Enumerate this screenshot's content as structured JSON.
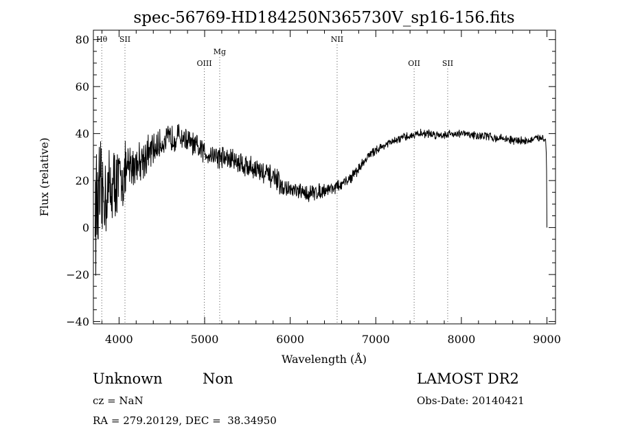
{
  "chart_data": {
    "type": "line",
    "title": "spec-56769-HD184250N365730V_sp16-156.fits",
    "xlabel": "Wavelength (Å)",
    "ylabel": "Flux (relative)",
    "xlim": [
      3700,
      9100
    ],
    "ylim": [
      -41,
      84
    ],
    "x_ticks": [
      4000,
      5000,
      6000,
      7000,
      8000,
      9000
    ],
    "y_ticks": [
      -40,
      -20,
      0,
      20,
      40,
      60,
      80
    ],
    "x_tick_labels": [
      "4000",
      "5000",
      "6000",
      "7000",
      "8000",
      "9000"
    ],
    "y_tick_labels": [
      "−40",
      "−20",
      "0",
      "20",
      "40",
      "60",
      "80"
    ],
    "grid": false,
    "spectral_lines": [
      {
        "label": "Hθ",
        "x": 3798,
        "tier": "top"
      },
      {
        "label": "SII",
        "x": 4069,
        "tier": "top"
      },
      {
        "label": "OIII",
        "x": 4996,
        "tier": "low"
      },
      {
        "label": "Mg",
        "x": 5176,
        "tier": "mid"
      },
      {
        "label": "NII",
        "x": 6548,
        "tier": "top"
      },
      {
        "label": "OII",
        "x": 7448,
        "tier": "low"
      },
      {
        "label": "SII",
        "x": 7840,
        "tier": "low"
      }
    ],
    "series": [
      {
        "x": [
          3720,
          3760,
          3800,
          3850,
          3900,
          3950,
          4000,
          4100,
          4200,
          4300,
          4400,
          4500,
          4600,
          4700,
          4800,
          4900,
          5000,
          5100,
          5200,
          5300,
          5400,
          5500,
          5600,
          5700,
          5800,
          5850,
          5900,
          6000,
          6100,
          6200,
          6300,
          6400,
          6500,
          6600,
          6700,
          6800,
          6900,
          7000,
          7100,
          7200,
          7300,
          7400,
          7500,
          7600,
          7700,
          7800,
          7900,
          8000,
          8100,
          8200,
          8300,
          8400,
          8500,
          8600,
          8700,
          8800,
          8900,
          8950,
          8985,
          8995,
          9000
        ],
        "y": [
          8,
          10,
          13,
          15,
          17,
          19,
          20,
          24,
          28,
          30,
          33,
          36,
          38,
          39,
          37,
          34,
          32,
          31,
          30,
          29,
          28,
          26,
          25,
          23,
          21,
          20,
          17,
          16,
          15,
          14.5,
          15,
          16,
          17,
          18,
          21,
          25,
          30,
          33,
          35,
          36.5,
          38,
          39,
          40,
          40,
          39.5,
          39.5,
          40,
          40,
          39.5,
          39,
          39,
          38,
          38,
          37,
          37,
          37,
          38,
          38.5,
          37,
          30,
          0
        ],
        "noise": [
          22,
          20,
          18,
          15,
          14,
          13,
          12,
          10,
          8,
          7,
          6,
          5,
          5,
          4.5,
          4.5,
          4.5,
          4.5,
          4.5,
          4.5,
          4.5,
          4.5,
          4.5,
          4.5,
          4,
          4,
          4,
          3,
          3,
          3,
          3,
          3,
          2.5,
          2.5,
          2,
          2,
          2,
          1.5,
          1.5,
          1.5,
          1.5,
          1.5,
          1.5,
          1.5,
          1.5,
          1.5,
          1.5,
          1.5,
          1.5,
          1.5,
          1.5,
          1.5,
          1.5,
          1.5,
          1.5,
          1.5,
          1.5,
          1.5,
          1.5,
          1,
          0,
          0
        ]
      }
    ]
  },
  "info": {
    "object_class": "Unknown",
    "subclass": "Non",
    "survey": "LAMOST DR2",
    "redshift": "cz = NaN",
    "obs_date": "Obs-Date: 20140421",
    "coords": "RA = 279.20129, DEC =  38.34950"
  }
}
